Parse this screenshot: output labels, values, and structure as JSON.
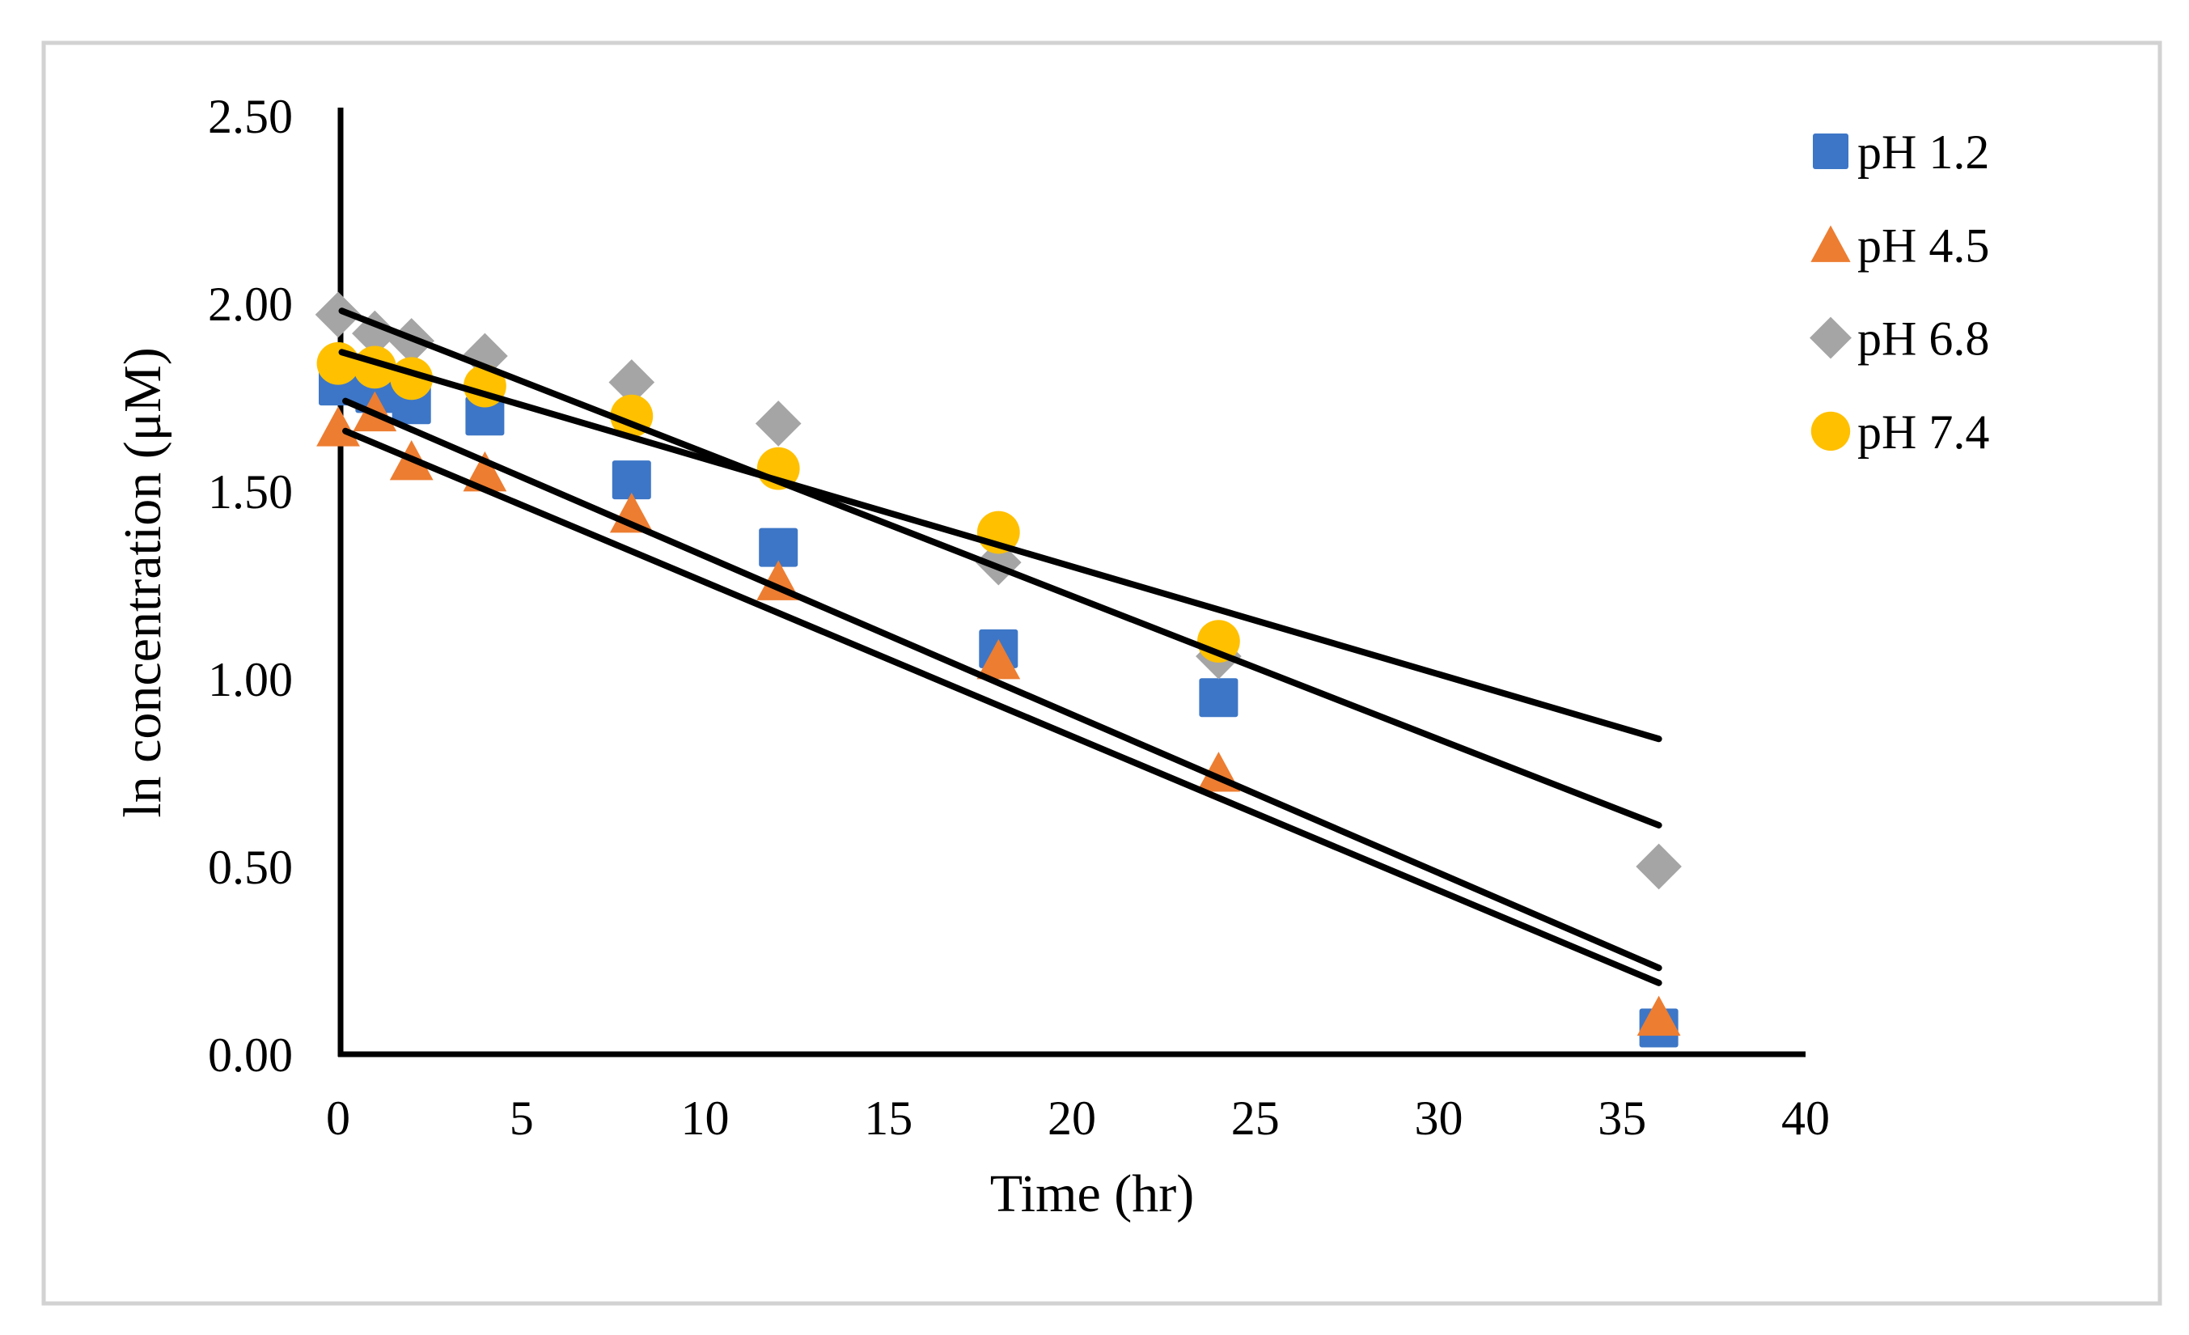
{
  "figure": {
    "background": "#ffffff",
    "frame_color": "#d2d2d2",
    "axis_color": "#000000",
    "trendline_color": "#000000"
  },
  "chart_data": {
    "type": "scatter",
    "title": "",
    "xlabel": "Time (hr)",
    "ylabel": "ln concentration (μM)",
    "xlim": [
      0,
      40
    ],
    "ylim": [
      0.0,
      2.5
    ],
    "grid": false,
    "legend_position": "right",
    "x_ticks": [
      "0",
      "5",
      "10",
      "15",
      "20",
      "25",
      "30",
      "35",
      "40"
    ],
    "y_ticks": [
      "0.00",
      "0.50",
      "1.00",
      "1.50",
      "2.00",
      "2.50"
    ],
    "series": [
      {
        "name": "pH 1.2",
        "marker": "square",
        "color": "#3d76c6",
        "points": [
          [
            0,
            1.78
          ],
          [
            1,
            1.76
          ],
          [
            2,
            1.73
          ],
          [
            4,
            1.7
          ],
          [
            8,
            1.53
          ],
          [
            12,
            1.35
          ],
          [
            18,
            1.08
          ],
          [
            24,
            0.95
          ],
          [
            36,
            0.07
          ]
        ]
      },
      {
        "name": "pH 4.5",
        "marker": "triangle",
        "color": "#ed7d31",
        "points": [
          [
            0,
            1.67
          ],
          [
            1,
            1.71
          ],
          [
            2,
            1.58
          ],
          [
            4,
            1.55
          ],
          [
            8,
            1.44
          ],
          [
            12,
            1.26
          ],
          [
            18,
            1.05
          ],
          [
            24,
            0.75
          ],
          [
            36,
            0.1
          ]
        ]
      },
      {
        "name": "pH 6.8",
        "marker": "diamond",
        "color": "#a5a5a5",
        "points": [
          [
            0,
            1.97
          ],
          [
            1,
            1.92
          ],
          [
            2,
            1.9
          ],
          [
            4,
            1.86
          ],
          [
            8,
            1.79
          ],
          [
            12,
            1.68
          ],
          [
            18,
            1.31
          ],
          [
            24,
            1.06
          ],
          [
            36,
            0.5
          ]
        ]
      },
      {
        "name": "pH 7.4",
        "marker": "circle",
        "color": "#ffc000",
        "points": [
          [
            0,
            1.84
          ],
          [
            1,
            1.83
          ],
          [
            2,
            1.8
          ],
          [
            4,
            1.78
          ],
          [
            8,
            1.7
          ],
          [
            12,
            1.56
          ],
          [
            18,
            1.39
          ],
          [
            24,
            1.1
          ]
        ]
      }
    ],
    "trendlines": [
      {
        "series": "pH 6.8",
        "from": [
          0.1,
          1.98
        ],
        "to": [
          36,
          0.61
        ]
      },
      {
        "series": "pH 7.4",
        "from": [
          0.1,
          1.87
        ],
        "to": [
          36,
          0.84
        ]
      },
      {
        "series": "pH 1.2",
        "from": [
          0.2,
          1.74
        ],
        "to": [
          36,
          0.23
        ]
      },
      {
        "series": "pH 4.5",
        "from": [
          0.2,
          1.66
        ],
        "to": [
          36,
          0.19
        ]
      }
    ]
  }
}
